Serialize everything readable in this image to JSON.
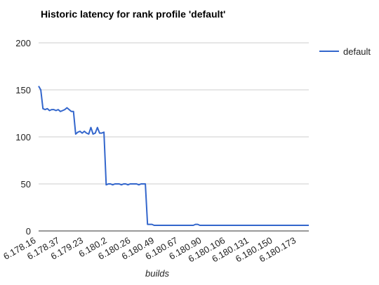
{
  "chart_data": {
    "type": "line",
    "title": "Historic latency for rank profile 'default'",
    "xlabel": "builds",
    "ylabel": "",
    "ylim": [
      0,
      200
    ],
    "yticks": [
      0,
      50,
      100,
      150,
      200
    ],
    "grid": true,
    "legend_position": "right",
    "x_tick_labels": [
      "6.178.16",
      "6.178.37",
      "6.179.23",
      "6.180.2",
      "6.180.26",
      "6.180.49",
      "6.180.67",
      "6.180.90",
      "6.180.106",
      "6.180.131",
      "6.180.150",
      "6.180.173"
    ],
    "series": [
      {
        "name": "default",
        "color": "#3366cc",
        "values": [
          154,
          150,
          130,
          129,
          130,
          128,
          129,
          129,
          128,
          129,
          127,
          128,
          129,
          131,
          129,
          127,
          127,
          103,
          105,
          106,
          104,
          106,
          104,
          103,
          110,
          103,
          104,
          110,
          104,
          104,
          105,
          49,
          50,
          50,
          49,
          50,
          50,
          50,
          49,
          50,
          50,
          49,
          50,
          50,
          50,
          50,
          49,
          50,
          50,
          50,
          7,
          7,
          7,
          6,
          6,
          6,
          6,
          6,
          6,
          6,
          6,
          6,
          6,
          6,
          6,
          6,
          6,
          6,
          6,
          6,
          6,
          6,
          7,
          7,
          6,
          6,
          6,
          6,
          6,
          6,
          6,
          6,
          6,
          6,
          6,
          6,
          6,
          6,
          6,
          6,
          6,
          6,
          6,
          6,
          6,
          6,
          6,
          6,
          6,
          6,
          6,
          6,
          6,
          6,
          6,
          6,
          6,
          6,
          6,
          6,
          6,
          6,
          6,
          6,
          6,
          6,
          6,
          6,
          6,
          6,
          6,
          6,
          6,
          6,
          6
        ]
      }
    ]
  }
}
